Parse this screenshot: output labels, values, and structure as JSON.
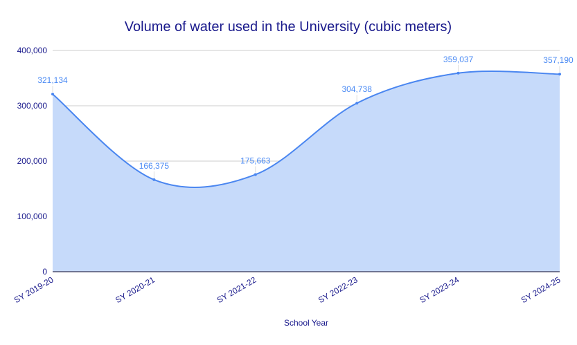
{
  "chart_data": {
    "type": "area",
    "title": "Volume of water used in the University (cubic meters)",
    "xlabel": "School Year",
    "ylabel": "",
    "categories": [
      "SY 2019-20",
      "SY 2020-21",
      "SY 2021-22",
      "SY 2022-23",
      "SY 2023-24",
      "SY 2024-25"
    ],
    "values": [
      321134,
      166375,
      175663,
      304738,
      359037,
      357190
    ],
    "data_labels": [
      "321,134",
      "166,375",
      "175,663",
      "304,738",
      "359,037",
      "357,190"
    ],
    "ylim": [
      0,
      400000
    ],
    "yticks": [
      0,
      100000,
      200000,
      300000,
      400000
    ],
    "ytick_labels": [
      "0",
      "100,000",
      "200,000",
      "300,000",
      "400,000"
    ],
    "grid": true,
    "smooth": true,
    "legend": "none",
    "colors": {
      "line": "#4a86f0",
      "fill": "#c6dafa",
      "text": "#1a1a8c",
      "label": "#4a8af4",
      "grid": "#cccccc"
    }
  }
}
